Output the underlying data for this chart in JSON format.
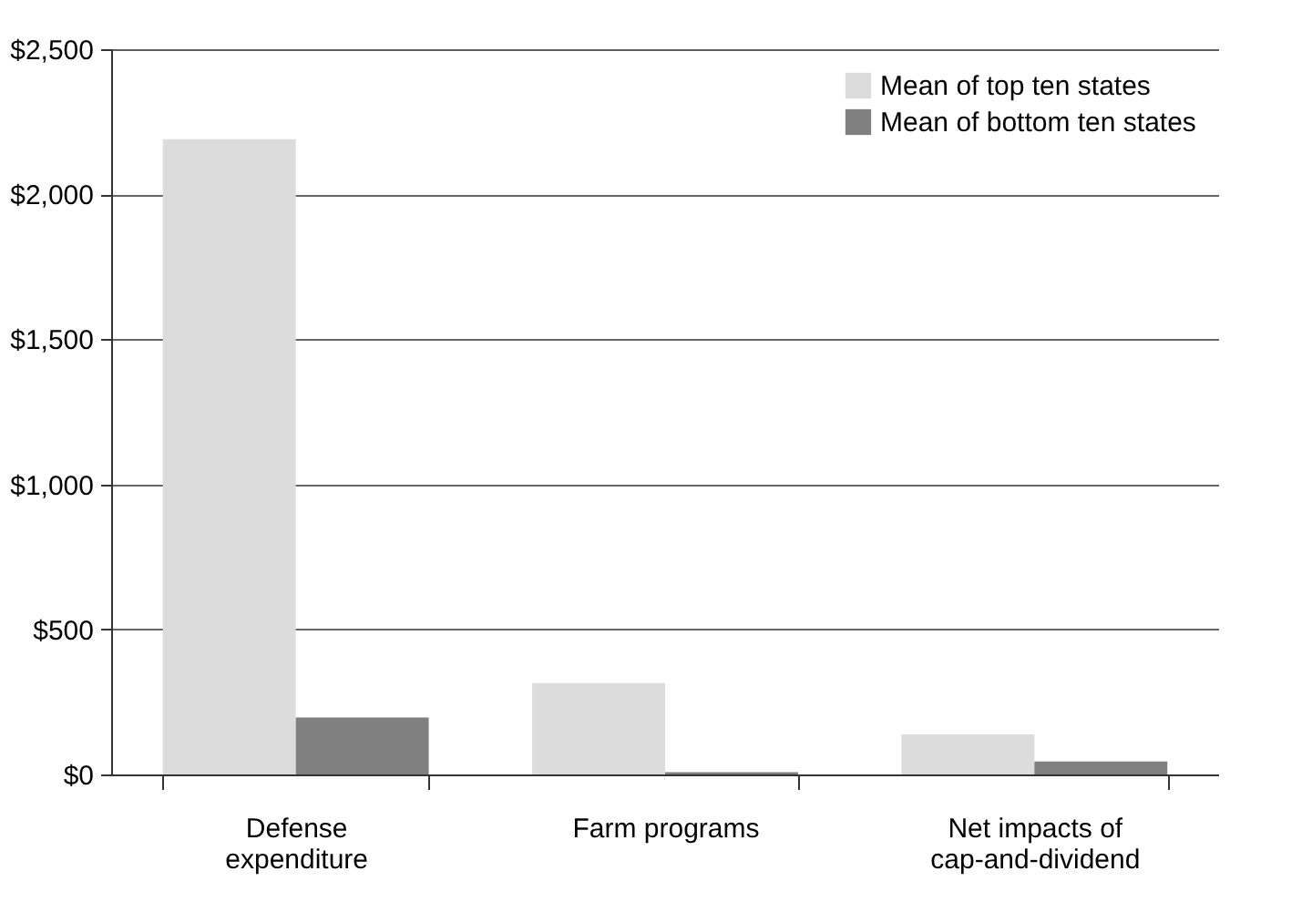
{
  "chart_data": {
    "type": "bar",
    "categories": [
      "Defense expenditure",
      "Farm programs",
      "Net impacts of cap-and-dividend"
    ],
    "series": [
      {
        "name": "Mean of top ten states",
        "color": "#dcdcdc",
        "values": [
          2190,
          315,
          138
        ]
      },
      {
        "name": "Mean of bottom ten states",
        "color": "#808080",
        "values": [
          196,
          8,
          45
        ]
      }
    ],
    "ylim": [
      0,
      2500
    ],
    "yticks": [
      {
        "value": 0,
        "label": "$0"
      },
      {
        "value": 500,
        "label": "$500"
      },
      {
        "value": 1000,
        "label": "$1,000"
      },
      {
        "value": 1500,
        "label": "$1,500"
      },
      {
        "value": 2000,
        "label": "$2,000"
      },
      {
        "value": 2500,
        "label": "$2,500"
      }
    ],
    "grid": "y",
    "legend": "top right"
  }
}
